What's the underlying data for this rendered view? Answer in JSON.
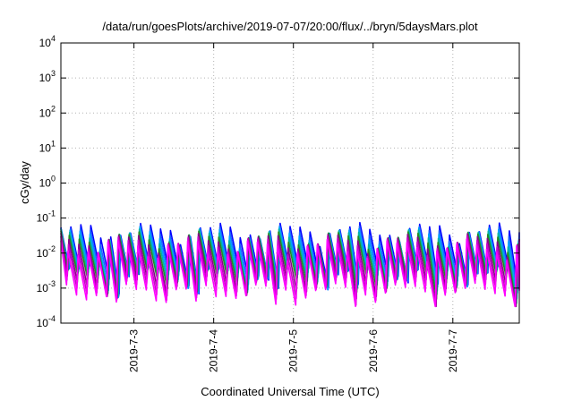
{
  "chart_data": {
    "type": "line",
    "title": "/data/run/goesPlots/archive/2019-07-07/20:00/flux/../bryn/5daysMars.plot",
    "xlabel": "Coordinated Universal Time (UTC)",
    "ylabel": "cGy/day",
    "yscale": "log",
    "ylim": [
      0.0001,
      10000
    ],
    "y_ticks": [
      {
        "base": "10",
        "exp": "-4",
        "value": 0.0001
      },
      {
        "base": "10",
        "exp": "-3",
        "value": 0.001
      },
      {
        "base": "10",
        "exp": "-2",
        "value": 0.01
      },
      {
        "base": "10",
        "exp": "-1",
        "value": 0.1
      },
      {
        "base": "10",
        "exp": "0",
        "value": 1
      },
      {
        "base": "10",
        "exp": "1",
        "value": 10
      },
      {
        "base": "10",
        "exp": "2",
        "value": 100
      },
      {
        "base": "10",
        "exp": "3",
        "value": 1000
      },
      {
        "base": "10",
        "exp": "4",
        "value": 10000
      }
    ],
    "xlim": [
      "2019-07-02 02:00",
      "2019-07-07 20:00"
    ],
    "x_ticks": [
      "2019-7-3",
      "2019-7-4",
      "2019-7-5",
      "2019-7-6",
      "2019-7-7"
    ],
    "x_tick_dates": [
      "2019-07-03",
      "2019-07-04",
      "2019-07-05",
      "2019-07-06",
      "2019-07-07"
    ],
    "grid": true,
    "sawtooth_period_hours": 3,
    "series": [
      {
        "color": "#0000ff",
        "peak": 0.06,
        "trough": 0.004
      },
      {
        "color": "#1e64ff",
        "peak": 0.05,
        "trough": 0.0035
      },
      {
        "color": "#00a0ff",
        "peak": 0.045,
        "trough": 0.003
      },
      {
        "color": "#00b4a0",
        "peak": 0.04,
        "trough": 0.0028
      },
      {
        "color": "#228b22",
        "peak": 0.035,
        "trough": 0.0025
      },
      {
        "color": "#8b008b",
        "peak": 0.03,
        "trough": 0.0018
      },
      {
        "color": "#cc00cc",
        "peak": 0.025,
        "trough": 0.0014
      },
      {
        "color": "#ff00ff",
        "peak": 0.02,
        "trough": 0.0011
      }
    ]
  }
}
